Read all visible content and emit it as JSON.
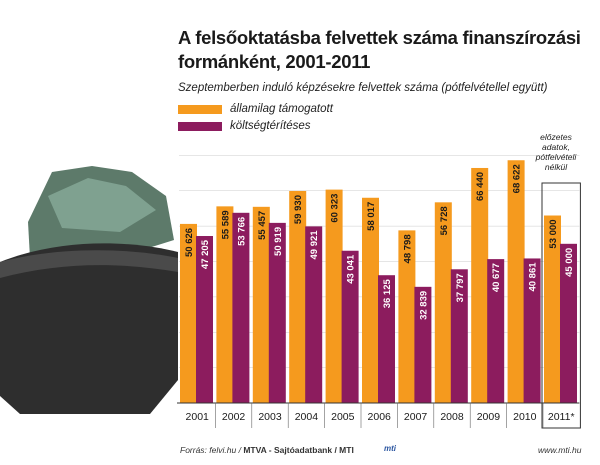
{
  "header": {
    "title": "A felsőoktatásba felvettek száma finanszírozási formánként, 2001-2011",
    "subtitle": "Szeptemberben induló képzésekre felvettek száma (pótfelvétellel együtt)"
  },
  "note": "előzetes adatok, pótfelvételi nélkül",
  "footer": {
    "source_prefix": "Forrás: felvi.hu / ",
    "source_bold": "MTVA - Sajtóadatbank / MTI",
    "logo": "mti",
    "url": "www.mti.hu"
  },
  "colors": {
    "state_funded": "#f59a1e",
    "self_funded": "#8c1c5e",
    "gridline": "#cccccc",
    "wallet": "#2e2e2e"
  },
  "chart_data": {
    "type": "bar",
    "categories": [
      "2001",
      "2002",
      "2003",
      "2004",
      "2005",
      "2006",
      "2007",
      "2008",
      "2009",
      "2010",
      "2011*"
    ],
    "series": [
      {
        "name": "államilag támogatott",
        "values": [
          50626,
          55589,
          55457,
          59930,
          60323,
          58017,
          48798,
          56728,
          66440,
          68622,
          53000
        ]
      },
      {
        "name": "költségtérítéses",
        "values": [
          47205,
          53766,
          50919,
          49921,
          43041,
          36125,
          32839,
          37797,
          40677,
          40861,
          45000
        ]
      }
    ],
    "value_labels": [
      [
        "50 626",
        "55 589",
        "55 457",
        "59 930",
        "60 323",
        "58 017",
        "48 798",
        "56 728",
        "66 440",
        "68 622",
        "53 000"
      ],
      [
        "47 205",
        "53 766",
        "50 919",
        "49 921",
        "43 041",
        "36 125",
        "32 839",
        "37 797",
        "40 677",
        "40 861",
        "45 000"
      ]
    ],
    "ylim": [
      0,
      80000
    ],
    "grid": true,
    "highlighted_category": "2011*",
    "legend_position": "top-left"
  }
}
